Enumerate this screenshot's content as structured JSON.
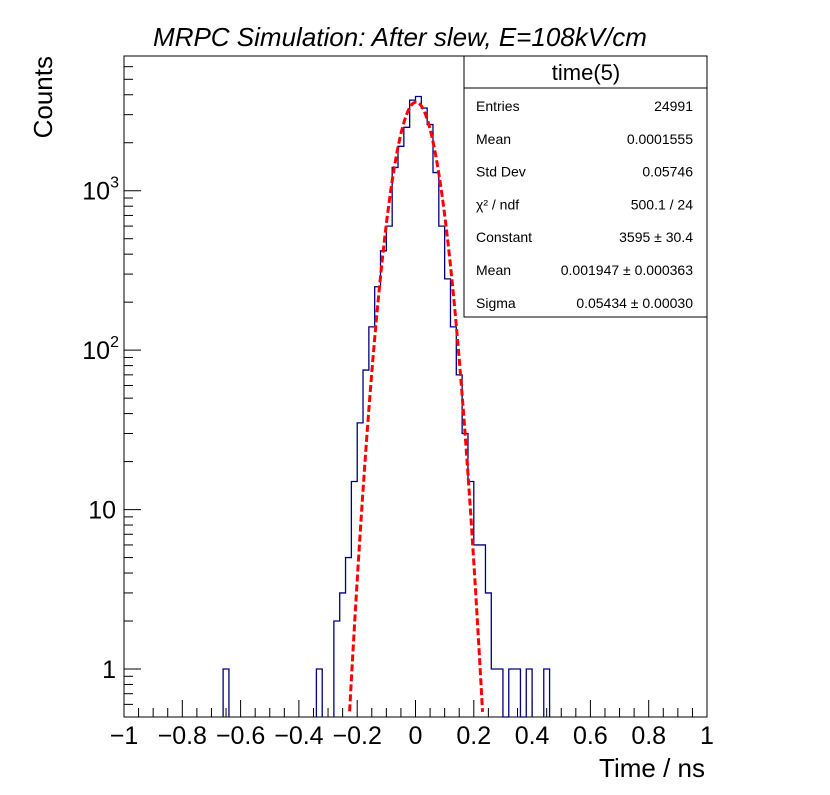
{
  "chart_data": {
    "type": "histogram",
    "title": "MRPC Simulation: After slew, E=108kV/cm",
    "xlabel": "Time / ns",
    "ylabel": "Counts",
    "xlim": [
      -1,
      1
    ],
    "ylim": [
      0.5,
      7000
    ],
    "y_scale": "log",
    "bin_width": 0.02,
    "x_ticks": [
      {
        "value": -1,
        "label": "−1"
      },
      {
        "value": -0.8,
        "label": "−0.8"
      },
      {
        "value": -0.6,
        "label": "−0.6"
      },
      {
        "value": -0.4,
        "label": "−0.4"
      },
      {
        "value": -0.2,
        "label": "−0.2"
      },
      {
        "value": 0,
        "label": "0"
      },
      {
        "value": 0.2,
        "label": "0.2"
      },
      {
        "value": 0.4,
        "label": "0.4"
      },
      {
        "value": 0.6,
        "label": "0.6"
      },
      {
        "value": 0.8,
        "label": "0.8"
      },
      {
        "value": 1,
        "label": "1"
      }
    ],
    "y_ticks": [
      {
        "value": 1,
        "label": "1"
      },
      {
        "value": 10,
        "label": "10"
      },
      {
        "value": 100,
        "label": "10",
        "sup": "2"
      },
      {
        "value": 1000,
        "label": "10",
        "sup": "3"
      }
    ],
    "histogram": {
      "name": "time(5)",
      "color": "#000080",
      "bins": [
        {
          "x0": -0.66,
          "x1": -0.64,
          "count": 1
        },
        {
          "x0": -0.34,
          "x1": -0.32,
          "count": 1
        },
        {
          "x0": -0.28,
          "x1": -0.26,
          "count": 2
        },
        {
          "x0": -0.26,
          "x1": -0.24,
          "count": 3
        },
        {
          "x0": -0.24,
          "x1": -0.22,
          "count": 5
        },
        {
          "x0": -0.22,
          "x1": -0.2,
          "count": 15
        },
        {
          "x0": -0.2,
          "x1": -0.18,
          "count": 35
        },
        {
          "x0": -0.18,
          "x1": -0.16,
          "count": 75
        },
        {
          "x0": -0.16,
          "x1": -0.14,
          "count": 140
        },
        {
          "x0": -0.14,
          "x1": -0.12,
          "count": 250
        },
        {
          "x0": -0.12,
          "x1": -0.1,
          "count": 420
        },
        {
          "x0": -0.1,
          "x1": -0.08,
          "count": 600
        },
        {
          "x0": -0.08,
          "x1": -0.06,
          "count": 1400
        },
        {
          "x0": -0.06,
          "x1": -0.04,
          "count": 1900
        },
        {
          "x0": -0.04,
          "x1": -0.02,
          "count": 2500
        },
        {
          "x0": -0.02,
          "x1": 0.0,
          "count": 3700
        },
        {
          "x0": 0.0,
          "x1": 0.02,
          "count": 3900
        },
        {
          "x0": 0.02,
          "x1": 0.04,
          "count": 3300
        },
        {
          "x0": 0.04,
          "x1": 0.06,
          "count": 2600
        },
        {
          "x0": 0.06,
          "x1": 0.08,
          "count": 1300
        },
        {
          "x0": 0.08,
          "x1": 0.1,
          "count": 600
        },
        {
          "x0": 0.1,
          "x1": 0.12,
          "count": 280
        },
        {
          "x0": 0.12,
          "x1": 0.14,
          "count": 140
        },
        {
          "x0": 0.14,
          "x1": 0.16,
          "count": 70
        },
        {
          "x0": 0.16,
          "x1": 0.18,
          "count": 30
        },
        {
          "x0": 0.18,
          "x1": 0.2,
          "count": 15
        },
        {
          "x0": 0.2,
          "x1": 0.22,
          "count": 6
        },
        {
          "x0": 0.22,
          "x1": 0.24,
          "count": 6
        },
        {
          "x0": 0.24,
          "x1": 0.26,
          "count": 3
        },
        {
          "x0": 0.26,
          "x1": 0.28,
          "count": 1
        },
        {
          "x0": 0.28,
          "x1": 0.3,
          "count": 1
        },
        {
          "x0": 0.3,
          "x1": 0.32,
          "count": 0
        },
        {
          "x0": 0.32,
          "x1": 0.34,
          "count": 1
        },
        {
          "x0": 0.34,
          "x1": 0.36,
          "count": 1
        },
        {
          "x0": 0.36,
          "x1": 0.38,
          "count": 0
        },
        {
          "x0": 0.38,
          "x1": 0.4,
          "count": 1
        },
        {
          "x0": 0.44,
          "x1": 0.46,
          "count": 1
        }
      ]
    },
    "fit": {
      "function": "gaus",
      "color": "#ff0000",
      "constant": 3595,
      "mean": 0.001947,
      "sigma": 0.05434
    },
    "stats_box": {
      "title": "time(5)",
      "placement": "top-right",
      "rows": [
        {
          "label": "Entries",
          "value": "24991"
        },
        {
          "label": "Mean",
          "value": "0.0001555"
        },
        {
          "label": "Std Dev",
          "value": "0.05746"
        },
        {
          "label": "χ² / ndf",
          "value": "500.1 / 24"
        },
        {
          "label": "Constant",
          "value": "3595 ± 30.4"
        },
        {
          "label": "Mean",
          "value": "0.001947 ± 0.000363"
        },
        {
          "label": "Sigma",
          "value": "0.05434 ± 0.00030"
        }
      ]
    }
  }
}
